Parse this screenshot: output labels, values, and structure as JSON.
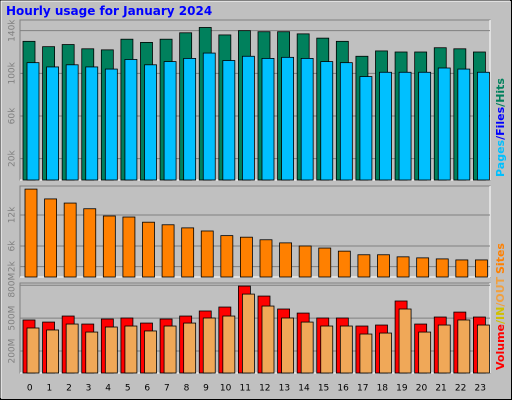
{
  "title": "Hourly usage for January 2024",
  "chart_data": [
    {
      "type": "bar",
      "ylim": [
        0,
        150000
      ],
      "yticks": [
        {
          "value": 20000,
          "label": "20k"
        },
        {
          "value": 60000,
          "label": "60k"
        },
        {
          "value": 100000,
          "label": "100k"
        },
        {
          "value": 140000,
          "label": "140k"
        }
      ],
      "legend": [
        {
          "text": "Pages",
          "color": "#00c0ff"
        },
        {
          "text": "/Files",
          "color": "#0000ff"
        },
        {
          "text": "/Hits",
          "color": "#00805c"
        }
      ],
      "series": [
        {
          "color": "#00805c",
          "values": [
            130000,
            125000,
            127000,
            123000,
            122000,
            132000,
            129000,
            132000,
            138000,
            143000,
            136000,
            140000,
            139000,
            139000,
            137000,
            133000,
            130000,
            116000,
            121000,
            120000,
            120000,
            124000,
            123000,
            120000
          ]
        },
        {
          "color": "#00c0ff",
          "values": [
            110000,
            106000,
            108000,
            106000,
            104000,
            113000,
            108000,
            111000,
            114000,
            119000,
            112000,
            116000,
            114000,
            115000,
            114000,
            111000,
            110000,
            97000,
            101000,
            101000,
            101000,
            105000,
            104000,
            101000
          ]
        }
      ]
    },
    {
      "type": "bar",
      "ylim": [
        0,
        17600
      ],
      "yticks": [
        {
          "value": 2000,
          "label": "2k"
        },
        {
          "value": 6000,
          "label": "6k"
        },
        {
          "value": 12000,
          "label": "12k"
        }
      ],
      "legend": [
        {
          "text": "Sites",
          "color": "#ff8000"
        }
      ],
      "series": [
        {
          "color": "#ff8000",
          "values": [
            17000,
            15100,
            14300,
            13200,
            11800,
            11600,
            10600,
            10100,
            9500,
            8900,
            8000,
            7700,
            7200,
            6600,
            6000,
            5600,
            5000,
            4300,
            4300,
            3900,
            3700,
            3500,
            3300,
            3300
          ]
        }
      ]
    },
    {
      "type": "bar",
      "ylim": [
        0,
        820
      ],
      "yticks": [
        {
          "value": 200,
          "label": "200M"
        },
        {
          "value": 500,
          "label": "500M"
        },
        {
          "value": 800,
          "label": "800M"
        }
      ],
      "legend": [
        {
          "text": "Volume",
          "color": "#ff0000"
        },
        {
          "text": "/IN",
          "color": "#d0c000"
        },
        {
          "text": "/OUT",
          "color": "#f0a040"
        }
      ],
      "categories": [
        "0",
        "1",
        "2",
        "3",
        "4",
        "5",
        "6",
        "7",
        "8",
        "9",
        "10",
        "11",
        "12",
        "13",
        "14",
        "15",
        "16",
        "17",
        "18",
        "19",
        "20",
        "21",
        "22",
        "23"
      ],
      "series": [
        {
          "color": "#ff0000",
          "values": [
            483,
            464,
            519,
            446,
            492,
            501,
            455,
            492,
            519,
            565,
            601,
            792,
            701,
            583,
            546,
            501,
            501,
            428,
            437,
            656,
            446,
            510,
            555,
            510
          ]
        },
        {
          "color": "#f0a858",
          "values": [
            410,
            392,
            446,
            373,
            419,
            428,
            383,
            428,
            455,
            501,
            519,
            719,
            610,
            501,
            464,
            428,
            428,
            355,
            364,
            583,
            373,
            437,
            483,
            437
          ]
        }
      ]
    }
  ]
}
